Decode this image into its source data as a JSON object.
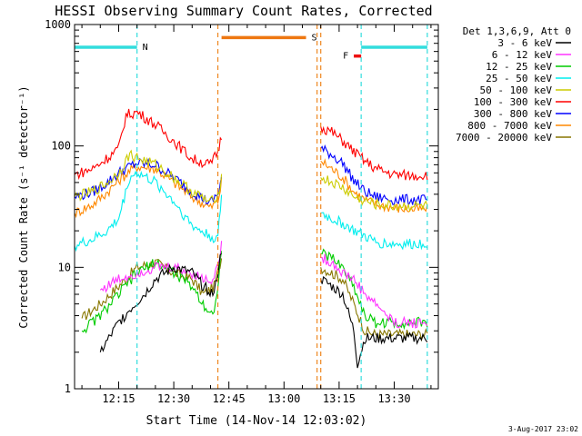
{
  "chart_data": {
    "type": "line",
    "title": "HESSI Observing Summary Count Rates, Corrected",
    "xlabel": "Start Time (14-Nov-14 12:03:02)",
    "ylabel": "Corrected Count Rate (s⁻¹ detector⁻¹)",
    "xlim": [
      "12:03",
      "13:42"
    ],
    "ylim": [
      1,
      1000
    ],
    "yscale": "log",
    "x_ticks": [
      "12:15",
      "12:30",
      "12:45",
      "13:00",
      "13:15",
      "13:30"
    ],
    "y_ticks": [
      "1",
      "10",
      "100",
      "1000"
    ],
    "legend_header": "Det 1,3,6,9, Att 0",
    "legend_position": "right",
    "timestamp": "3-Aug-2017 23:02",
    "data_gaps": [
      [
        "12:43",
        "13:09"
      ]
    ],
    "vertical_markers": [
      {
        "time": "12:20",
        "color": "#33dddd"
      },
      {
        "time": "12:42",
        "color": "#ee8822"
      },
      {
        "time": "13:09",
        "color": "#ee8822"
      },
      {
        "time": "13:10",
        "color": "#ee8822"
      },
      {
        "time": "13:21",
        "color": "#33dddd"
      },
      {
        "time": "13:39",
        "color": "#33dddd"
      }
    ],
    "flag_bars": [
      {
        "label": "N",
        "color": "#33dddd",
        "start": "12:03",
        "end": "12:20",
        "level": 650
      },
      {
        "label": "S",
        "color": "#ee7711",
        "start": "12:43",
        "end": "13:06",
        "level": 780
      },
      {
        "label": "F",
        "color": "#ee1111",
        "start": "13:19",
        "end": "13:21",
        "level": 550
      },
      {
        "label": "",
        "color": "#33dddd",
        "start": "13:21",
        "end": "13:39",
        "level": 650
      }
    ],
    "series": [
      {
        "name": "3 - 6 keV",
        "color": "#000000",
        "x": [
          "12:10",
          "12:15",
          "12:18",
          "12:22",
          "12:25",
          "12:30",
          "12:35",
          "12:38",
          "12:41",
          "12:43",
          "13:10",
          "13:13",
          "13:16",
          "13:19",
          "13:20",
          "13:22",
          "13:25",
          "13:30",
          "13:35",
          "13:39"
        ],
        "y": [
          2.0,
          3.5,
          4.5,
          6,
          8,
          10,
          9,
          7,
          6,
          14,
          8,
          7,
          6,
          3,
          1.6,
          2.6,
          2.6,
          2.6,
          2.6,
          2.6
        ]
      },
      {
        "name": "6 - 12 keV",
        "color": "#ff33ff",
        "x": [
          "12:10",
          "12:15",
          "12:20",
          "12:25",
          "12:30",
          "12:35",
          "12:38",
          "12:41",
          "12:43",
          "13:10",
          "13:13",
          "13:16",
          "13:19",
          "13:22",
          "13:25",
          "13:30",
          "13:35",
          "13:39"
        ],
        "y": [
          6.5,
          8,
          9,
          10,
          10,
          9,
          8,
          8,
          15,
          12,
          11,
          9,
          8,
          6,
          5,
          3.5,
          3.5,
          3.5
        ]
      },
      {
        "name": "12 - 25 keV",
        "color": "#00cc00",
        "x": [
          "12:05",
          "12:10",
          "12:15",
          "12:20",
          "12:25",
          "12:30",
          "12:35",
          "12:38",
          "12:41",
          "12:43",
          "13:10",
          "13:13",
          "13:16",
          "13:19",
          "13:22",
          "13:25",
          "13:30",
          "13:35",
          "13:39"
        ],
        "y": [
          3,
          4,
          6,
          9,
          11,
          9,
          7,
          5,
          4,
          14,
          13,
          12,
          10,
          7,
          4,
          3.5,
          3.5,
          3.5,
          3.5
        ]
      },
      {
        "name": "25 - 50 keV",
        "color": "#00eeee",
        "x": [
          "12:03",
          "12:08",
          "12:12",
          "12:15",
          "12:18",
          "12:20",
          "12:25",
          "12:30",
          "12:35",
          "12:40",
          "12:42",
          "12:43",
          "13:10",
          "13:13",
          "13:16",
          "13:19",
          "13:22",
          "13:25",
          "13:30",
          "13:35",
          "13:39"
        ],
        "y": [
          15,
          17,
          20,
          25,
          55,
          60,
          50,
          35,
          22,
          18,
          17,
          40,
          28,
          25,
          23,
          20,
          18,
          16,
          15.5,
          15.5,
          16
        ]
      },
      {
        "name": "50 - 100 keV",
        "color": "#cccc00",
        "x": [
          "12:03",
          "12:08",
          "12:12",
          "12:15",
          "12:18",
          "12:20",
          "12:25",
          "12:30",
          "12:35",
          "12:40",
          "12:42",
          "12:43",
          "13:10",
          "13:13",
          "13:16",
          "13:19",
          "13:22",
          "13:25",
          "13:30",
          "13:35",
          "13:39"
        ],
        "y": [
          38,
          42,
          50,
          60,
          85,
          80,
          70,
          55,
          42,
          34,
          40,
          55,
          55,
          50,
          45,
          38,
          35,
          33,
          32,
          32,
          32
        ]
      },
      {
        "name": "100 - 300 keV",
        "color": "#ff0000",
        "x": [
          "12:03",
          "12:08",
          "12:12",
          "12:15",
          "12:17",
          "12:20",
          "12:25",
          "12:30",
          "12:35",
          "12:40",
          "12:42",
          "12:43",
          "13:10",
          "13:13",
          "13:16",
          "13:19",
          "13:22",
          "13:25",
          "13:30",
          "13:35",
          "13:39"
        ],
        "y": [
          58,
          65,
          80,
          95,
          180,
          190,
          150,
          110,
          78,
          70,
          90,
          120,
          145,
          130,
          110,
          90,
          75,
          65,
          58,
          57,
          58
        ]
      },
      {
        "name": "300 - 800 keV",
        "color": "#0000ff",
        "x": [
          "12:03",
          "12:08",
          "12:12",
          "12:15",
          "12:18",
          "12:20",
          "12:25",
          "12:30",
          "12:35",
          "12:40",
          "12:42",
          "12:43",
          "13:10",
          "13:13",
          "13:16",
          "13:19",
          "13:22",
          "13:25",
          "13:30",
          "13:35",
          "13:39"
        ],
        "y": [
          38,
          42,
          50,
          60,
          68,
          72,
          70,
          55,
          42,
          34,
          40,
          55,
          95,
          85,
          72,
          52,
          42,
          38,
          36,
          36,
          36
        ]
      },
      {
        "name": "800 - 7000 keV",
        "color": "#ff8800",
        "x": [
          "12:03",
          "12:08",
          "12:12",
          "12:15",
          "12:18",
          "12:20",
          "12:25",
          "12:30",
          "12:35",
          "12:40",
          "12:42",
          "12:43",
          "13:10",
          "13:13",
          "13:16",
          "13:19",
          "13:22",
          "13:25",
          "13:30",
          "13:35",
          "13:39"
        ],
        "y": [
          28,
          33,
          42,
          52,
          62,
          68,
          65,
          50,
          38,
          31,
          35,
          50,
          75,
          65,
          55,
          42,
          36,
          33,
          31,
          30,
          30
        ]
      },
      {
        "name": "7000 - 20000 keV",
        "color": "#887700",
        "x": [
          "12:05",
          "12:10",
          "12:15",
          "12:20",
          "12:25",
          "12:30",
          "12:35",
          "12:38",
          "12:41",
          "12:43",
          "13:10",
          "13:13",
          "13:16",
          "13:19",
          "13:22",
          "13:25",
          "13:30",
          "13:35",
          "13:39"
        ],
        "y": [
          3.8,
          5,
          7,
          10,
          11,
          9,
          8,
          6,
          7,
          12,
          10,
          9,
          8,
          5,
          3,
          2.8,
          2.8,
          2.8,
          2.8
        ]
      }
    ]
  }
}
